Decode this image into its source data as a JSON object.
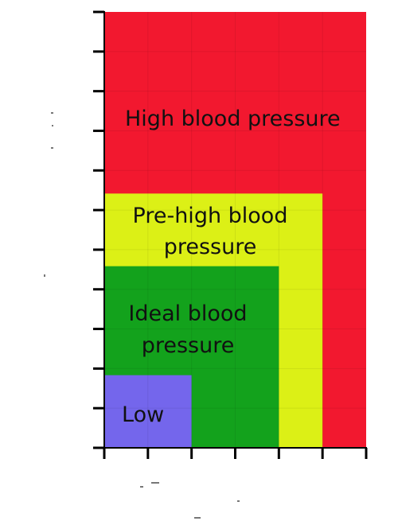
{
  "chart_data": {
    "type": "heatmap",
    "title": "",
    "xlabel": "",
    "ylabel": "",
    "x_ticks": 7,
    "y_ticks": 12,
    "x_range": [
      0,
      6
    ],
    "y_range": [
      0,
      12
    ],
    "grid": true,
    "regions": [
      {
        "name": "High blood pressure",
        "label_lines": [
          "High blood pressure"
        ],
        "color": "#f2182f",
        "x_max": 6,
        "y_max": 12
      },
      {
        "name": "Pre-high blood pressure",
        "label_lines": [
          "Pre-high blood",
          "pressure"
        ],
        "color": "#dcf016",
        "x_max": 5,
        "y_max": 7
      },
      {
        "name": "Ideal blood pressure",
        "label_lines": [
          "Ideal blood",
          "pressure"
        ],
        "color": "#13a21c",
        "x_max": 4,
        "y_max": 5
      },
      {
        "name": "Low",
        "label_lines": [
          "Low"
        ],
        "color": "#7466ec",
        "x_max": 2,
        "y_max": 2
      }
    ]
  }
}
